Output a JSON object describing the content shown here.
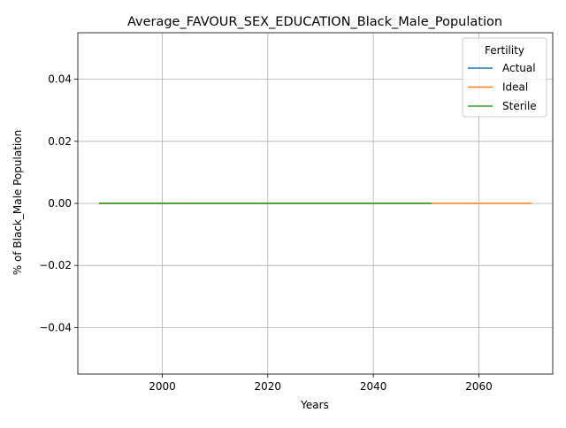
{
  "chart_data": {
    "type": "line",
    "title": "Average_FAVOUR_SEX_EDUCATION_Black_Male_Population",
    "xlabel": "Years",
    "ylabel": "% of Black_Male Population",
    "xlim": [
      1984,
      2074
    ],
    "ylim": [
      -0.055,
      0.055
    ],
    "x_ticks": [
      2000,
      2020,
      2040,
      2060
    ],
    "x_tick_labels": [
      "2000",
      "2020",
      "2040",
      "2060"
    ],
    "y_ticks": [
      -0.04,
      -0.02,
      0.0,
      0.02,
      0.04
    ],
    "y_tick_labels": [
      "−0.04",
      "−0.02",
      "0.00",
      "0.02",
      "0.04"
    ],
    "grid": true,
    "legend": {
      "title": "Fertility",
      "placement": "top-right"
    },
    "series": [
      {
        "name": "Actual",
        "color": "#1f77b4",
        "x": [
          1988,
          2051
        ],
        "values": [
          0.0,
          0.0
        ]
      },
      {
        "name": "Ideal",
        "color": "#ff7f0e",
        "x": [
          1988,
          2070
        ],
        "values": [
          0.0,
          0.0
        ]
      },
      {
        "name": "Sterile",
        "color": "#2ca02c",
        "x": [
          1988,
          2051
        ],
        "values": [
          0.0,
          0.0
        ]
      }
    ]
  }
}
